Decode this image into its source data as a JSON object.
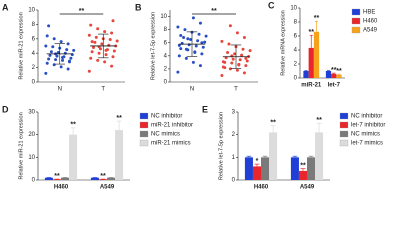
{
  "chart_data": [
    {
      "type": "strip",
      "panel": "A",
      "y_label": "Relative miR-21 expression",
      "ylim": [
        0,
        10
      ],
      "yticks": [
        0,
        2,
        4,
        6,
        8,
        10
      ],
      "comparison": "**",
      "groups": [
        {
          "name": "N",
          "color": "#2a4fc4",
          "values": [
            1.2,
            1.8,
            2.1,
            2.4,
            2.6,
            2.8,
            3.0,
            3.1,
            3.2,
            3.3,
            3.5,
            3.6,
            3.7,
            3.8,
            4.0,
            4.1,
            4.2,
            4.4,
            4.5,
            4.7,
            4.9,
            5.0,
            5.3,
            5.6,
            6.0,
            6.4,
            2.9,
            3.4,
            3.9,
            7.8
          ]
        },
        {
          "name": "T",
          "color": "#e8453c",
          "values": [
            1.5,
            2.2,
            2.8,
            3.0,
            3.3,
            3.5,
            3.8,
            4.0,
            4.2,
            4.3,
            4.5,
            4.6,
            4.8,
            5.0,
            5.1,
            5.3,
            5.5,
            5.7,
            5.9,
            6.0,
            6.2,
            6.5,
            6.8,
            7.0,
            7.4,
            7.9,
            8.5,
            4.4,
            4.9,
            5.6
          ]
        }
      ]
    },
    {
      "type": "strip",
      "panel": "B",
      "y_label": "Relative let-7-5p expression",
      "ylim": [
        0,
        11
      ],
      "yticks": [
        0,
        2,
        4,
        6,
        8,
        10
      ],
      "comparison": "**",
      "groups": [
        {
          "name": "N",
          "color": "#2a4fc4",
          "values": [
            1.5,
            2.5,
            3.0,
            3.6,
            4.0,
            4.3,
            4.6,
            4.9,
            5.1,
            5.3,
            5.5,
            5.7,
            5.9,
            6.1,
            6.3,
            6.5,
            6.8,
            7.0,
            7.3,
            7.6,
            8.0,
            8.4,
            9.0,
            9.8,
            5.0,
            5.6,
            6.0,
            4.5,
            6.6,
            7.1
          ]
        },
        {
          "name": "T",
          "color": "#e8453c",
          "values": [
            1.0,
            1.4,
            1.8,
            2.0,
            2.3,
            2.5,
            2.7,
            2.9,
            3.0,
            3.2,
            3.4,
            3.5,
            3.7,
            3.9,
            4.1,
            4.3,
            4.5,
            4.8,
            5.0,
            5.4,
            5.8,
            6.2,
            6.8,
            7.5,
            8.6,
            3.1,
            3.6,
            2.6,
            4.0,
            2.2
          ]
        }
      ]
    },
    {
      "type": "grouped-bar",
      "panel": "C",
      "y_label": "Relative mRNA expression",
      "ylim": [
        0,
        10
      ],
      "yticks": [
        0,
        2,
        4,
        6,
        8,
        10
      ],
      "categories": [
        "miR-21",
        "let-7"
      ],
      "series": [
        {
          "name": "HBE",
          "color": "#1f3fd6",
          "values": [
            1,
            1
          ],
          "errors": [
            0.05,
            0.05
          ],
          "sig": [
            null,
            null
          ]
        },
        {
          "name": "H460",
          "color": "#e8262b",
          "values": [
            4.3,
            0.6
          ],
          "errors": [
            1.8,
            0.1
          ],
          "sig": [
            "**",
            "**"
          ]
        },
        {
          "name": "A549",
          "color": "#f7a21b",
          "values": [
            6.6,
            0.45
          ],
          "errors": [
            1.5,
            0.1
          ],
          "sig": [
            "**",
            "**"
          ]
        }
      ]
    },
    {
      "type": "grouped-bar",
      "panel": "D",
      "y_label": "Relative miR-21 expression",
      "ylim": [
        0,
        30
      ],
      "yticks": [
        0,
        10,
        20,
        30
      ],
      "categories": [
        "H460",
        "A549"
      ],
      "series": [
        {
          "name": "NC inhibitor",
          "color": "#1f3fd6",
          "values": [
            1,
            1
          ],
          "errors": [
            0.1,
            0.1
          ],
          "sig": [
            null,
            null
          ]
        },
        {
          "name": "miR-21 inhibitor",
          "color": "#e8262b",
          "values": [
            0.3,
            0.3
          ],
          "errors": [
            0.1,
            0.1
          ],
          "sig": [
            "**",
            "**"
          ]
        },
        {
          "name": "NC mimics",
          "color": "#7a7a7a",
          "values": [
            1,
            1
          ],
          "errors": [
            0.1,
            0.1
          ],
          "sig": [
            null,
            null
          ]
        },
        {
          "name": "miR-21 mimics",
          "color": "#dcdcdc",
          "values": [
            20,
            22
          ],
          "errors": [
            3,
            4
          ],
          "sig": [
            "**",
            "**"
          ]
        }
      ]
    },
    {
      "type": "grouped-bar",
      "panel": "E",
      "y_label": "Relative let-7-5p expression",
      "ylim": [
        0,
        3
      ],
      "yticks": [
        0,
        1,
        2,
        3
      ],
      "categories": [
        "H460",
        "A549"
      ],
      "series": [
        {
          "name": "NC inhibitor",
          "color": "#1f3fd6",
          "values": [
            1,
            1
          ],
          "errors": [
            0.05,
            0.05
          ],
          "sig": [
            null,
            null
          ]
        },
        {
          "name": "let-7 inhibitor",
          "color": "#e8262b",
          "values": [
            0.6,
            0.4
          ],
          "errors": [
            0.1,
            0.1
          ],
          "sig": [
            "*",
            "**"
          ]
        },
        {
          "name": "NC mimics",
          "color": "#7a7a7a",
          "values": [
            1,
            1
          ],
          "errors": [
            0.05,
            0.05
          ],
          "sig": [
            null,
            null
          ]
        },
        {
          "name": "let-7 mimics",
          "color": "#dcdcdc",
          "values": [
            2.1,
            2.1
          ],
          "errors": [
            0.3,
            0.4
          ],
          "sig": [
            "**",
            "**"
          ]
        }
      ]
    }
  ]
}
